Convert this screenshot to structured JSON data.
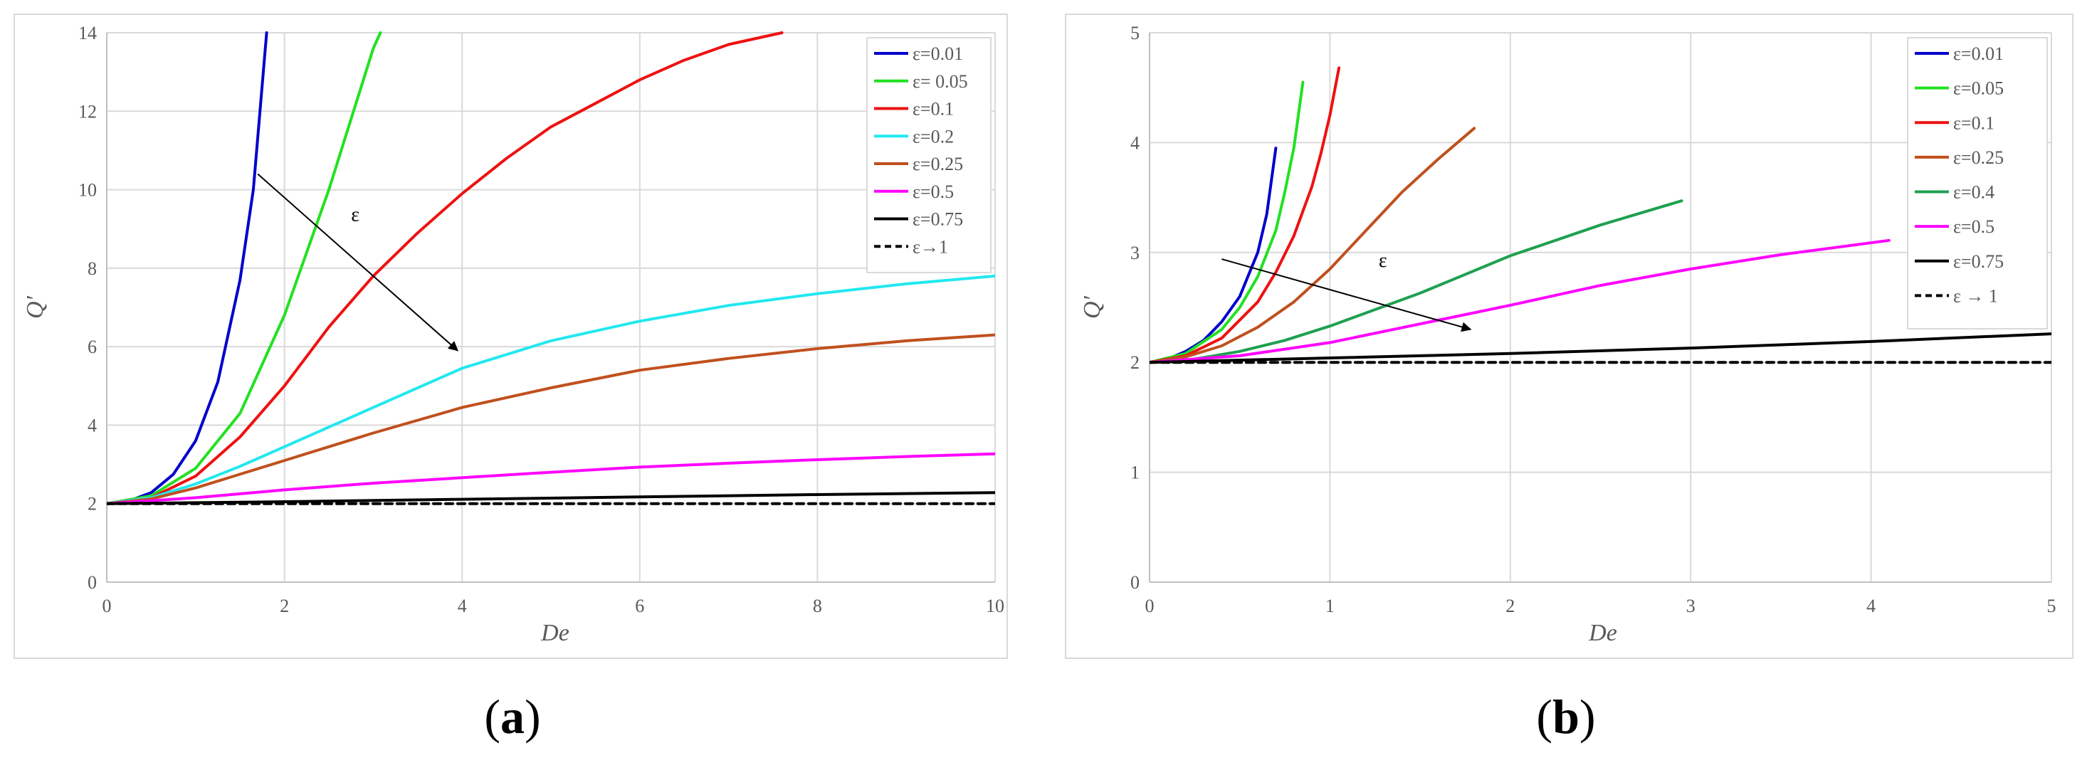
{
  "figure_labels": [
    "a",
    "b"
  ],
  "chart_data": [
    {
      "type": "line",
      "panel": "a",
      "xlabel": "De",
      "ylabel": "Q′",
      "xlim": [
        0,
        10
      ],
      "ylim": [
        0,
        14
      ],
      "xticks": [
        0,
        2,
        4,
        6,
        8,
        10
      ],
      "yticks": [
        0,
        2,
        4,
        6,
        8,
        10,
        12,
        14
      ],
      "grid": true,
      "legend_position": "top-right",
      "annotation": {
        "text": "ε",
        "arrow_from": [
          1.7,
          10.4
        ],
        "arrow_to": [
          3.95,
          5.9
        ],
        "text_at": [
          2.75,
          9.2
        ]
      },
      "series": [
        {
          "name": "ε=0.01",
          "color": "#0000cc",
          "dash": false,
          "x": [
            0,
            0.25,
            0.5,
            0.75,
            1.0,
            1.25,
            1.5,
            1.65,
            1.8
          ],
          "y": [
            2,
            2.07,
            2.28,
            2.75,
            3.6,
            5.1,
            7.7,
            10.0,
            14
          ]
        },
        {
          "name": "ε= 0.05",
          "color": "#22e122",
          "dash": false,
          "x": [
            0,
            0.5,
            1.0,
            1.5,
            2.0,
            2.5,
            3.0,
            3.08
          ],
          "y": [
            2,
            2.2,
            2.9,
            4.3,
            6.8,
            10.0,
            13.6,
            14
          ]
        },
        {
          "name": "ε=0.1",
          "color": "#ee1111",
          "dash": false,
          "x": [
            0,
            0.5,
            1.0,
            1.5,
            2.0,
            2.5,
            3.0,
            3.5,
            4.0,
            4.5,
            5.0,
            5.5,
            6.0,
            6.5,
            7.0,
            7.6
          ],
          "y": [
            2,
            2.15,
            2.7,
            3.7,
            5.0,
            6.5,
            7.8,
            8.9,
            9.9,
            10.8,
            11.6,
            12.2,
            12.8,
            13.3,
            13.7,
            14
          ]
        },
        {
          "name": "ε=0.2",
          "color": "#22e8f0",
          "dash": false,
          "x": [
            0,
            0.5,
            1.0,
            1.5,
            2.0,
            2.5,
            3.0,
            4.0,
            5.0,
            6.0,
            7.0,
            8.0,
            9.0,
            10.0
          ],
          "y": [
            2,
            2.15,
            2.5,
            2.95,
            3.45,
            3.95,
            4.45,
            5.45,
            6.15,
            6.65,
            7.05,
            7.35,
            7.6,
            7.8
          ]
        },
        {
          "name": "ε=0.25",
          "color": "#c0501e",
          "dash": false,
          "x": [
            0,
            0.5,
            1.0,
            1.5,
            2.0,
            2.5,
            3.0,
            4.0,
            5.0,
            6.0,
            7.0,
            8.0,
            9.0,
            10.0
          ],
          "y": [
            2,
            2.12,
            2.4,
            2.75,
            3.1,
            3.45,
            3.8,
            4.45,
            4.95,
            5.4,
            5.7,
            5.95,
            6.15,
            6.3
          ]
        },
        {
          "name": "ε=0.5",
          "color": "#ff00ff",
          "dash": false,
          "x": [
            0,
            1,
            2,
            3,
            4,
            5,
            6,
            7,
            8,
            9,
            10
          ],
          "y": [
            2,
            2.15,
            2.35,
            2.52,
            2.66,
            2.8,
            2.93,
            3.03,
            3.12,
            3.2,
            3.27
          ]
        },
        {
          "name": "ε=0.75",
          "color": "#000000",
          "dash": false,
          "x": [
            0,
            2,
            4,
            6,
            8,
            10
          ],
          "y": [
            2,
            2.05,
            2.11,
            2.17,
            2.23,
            2.28
          ]
        },
        {
          "name": "ε→1",
          "color": "#000000",
          "dash": true,
          "x": [
            0,
            10
          ],
          "y": [
            2,
            2
          ]
        }
      ]
    },
    {
      "type": "line",
      "panel": "b",
      "xlabel": "De",
      "ylabel": "Q′",
      "xlim": [
        0,
        5
      ],
      "ylim": [
        0,
        5
      ],
      "xticks": [
        0,
        1,
        2,
        3,
        4,
        5
      ],
      "yticks": [
        0,
        1,
        2,
        3,
        4,
        5
      ],
      "grid": true,
      "legend_position": "top-right",
      "annotation": {
        "text": "ε",
        "arrow_from": [
          0.4,
          2.94
        ],
        "arrow_to": [
          1.78,
          2.3
        ],
        "text_at": [
          1.27,
          2.87
        ]
      },
      "series": [
        {
          "name": "ε=0.01",
          "color": "#0000cc",
          "dash": false,
          "x": [
            0,
            0.1,
            0.2,
            0.3,
            0.4,
            0.5,
            0.6,
            0.65,
            0.7
          ],
          "y": [
            2,
            2.03,
            2.1,
            2.2,
            2.37,
            2.6,
            3.0,
            3.35,
            3.95
          ]
        },
        {
          "name": "ε=0.05",
          "color": "#22e122",
          "dash": false,
          "x": [
            0,
            0.2,
            0.4,
            0.5,
            0.6,
            0.7,
            0.75,
            0.8,
            0.85
          ],
          "y": [
            2,
            2.08,
            2.3,
            2.5,
            2.78,
            3.2,
            3.55,
            3.95,
            4.55
          ]
        },
        {
          "name": "ε=0.1",
          "color": "#ee1111",
          "dash": false,
          "x": [
            0,
            0.2,
            0.4,
            0.6,
            0.7,
            0.8,
            0.9,
            0.95,
            1.0,
            1.05
          ],
          "y": [
            2,
            2.06,
            2.22,
            2.55,
            2.82,
            3.15,
            3.6,
            3.9,
            4.25,
            4.68
          ]
        },
        {
          "name": "ε=0.25",
          "color": "#c0501e",
          "dash": false,
          "x": [
            0,
            0.2,
            0.4,
            0.6,
            0.8,
            1.0,
            1.2,
            1.4,
            1.6,
            1.8
          ],
          "y": [
            2,
            2.05,
            2.15,
            2.32,
            2.55,
            2.85,
            3.2,
            3.55,
            3.85,
            4.13
          ]
        },
        {
          "name": "ε=0.4",
          "color": "#1ea050",
          "dash": false,
          "x": [
            0,
            0.25,
            0.5,
            0.75,
            1.0,
            1.5,
            2.0,
            2.5,
            2.95
          ],
          "y": [
            2,
            2.03,
            2.1,
            2.2,
            2.33,
            2.63,
            2.97,
            3.25,
            3.47
          ]
        },
        {
          "name": "ε=0.5",
          "color": "#ff00ff",
          "dash": false,
          "x": [
            0,
            0.5,
            1.0,
            1.5,
            2.0,
            2.5,
            3.0,
            3.5,
            4.1
          ],
          "y": [
            2,
            2.06,
            2.18,
            2.35,
            2.52,
            2.7,
            2.85,
            2.98,
            3.11
          ]
        },
        {
          "name": "ε=0.75",
          "color": "#000000",
          "dash": false,
          "x": [
            0,
            1,
            2,
            3,
            4,
            5
          ],
          "y": [
            2,
            2.04,
            2.08,
            2.13,
            2.19,
            2.26
          ]
        },
        {
          "name": "ε → 1",
          "color": "#000000",
          "dash": true,
          "x": [
            0,
            5
          ],
          "y": [
            2,
            2
          ]
        }
      ]
    }
  ]
}
